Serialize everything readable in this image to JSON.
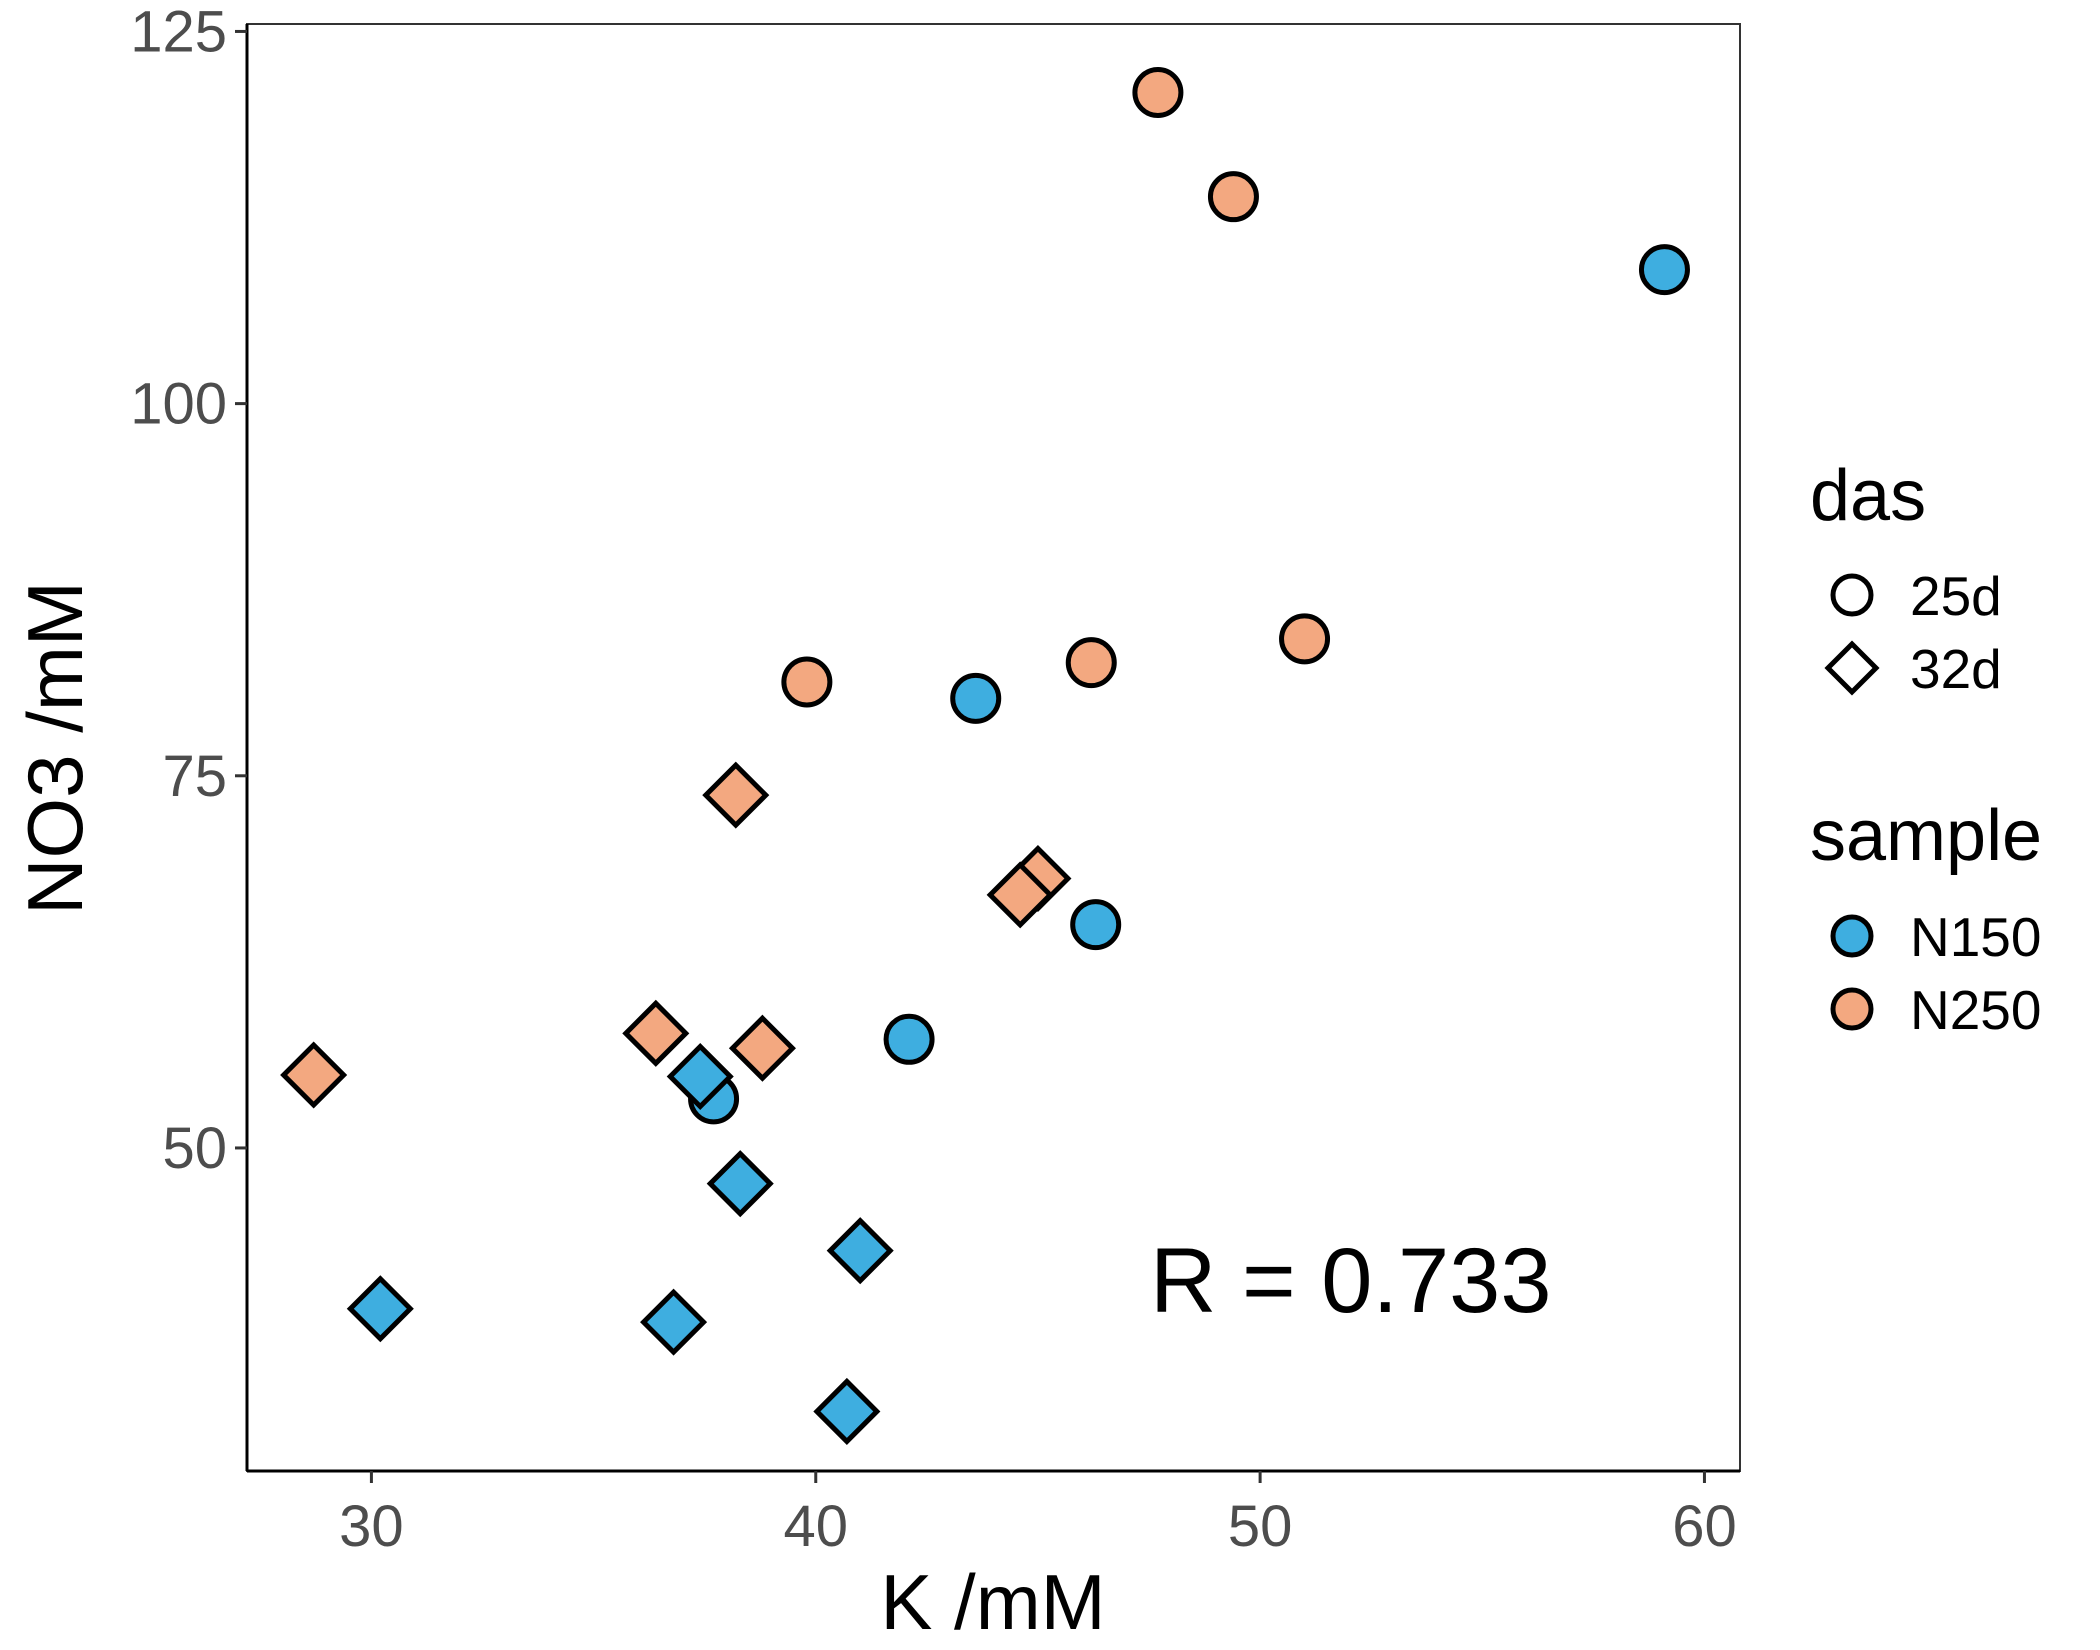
{
  "chart_data": {
    "type": "scatter",
    "xlabel": "K /mM",
    "ylabel": "NO3 /mM",
    "xlim": [
      27.2,
      60.8
    ],
    "ylim": [
      28.3,
      125.5
    ],
    "x_ticks": [
      30,
      40,
      50,
      60
    ],
    "y_ticks": [
      50,
      75,
      100,
      125
    ],
    "grid": false,
    "annotation": "R = 0.733",
    "legend_position": "right",
    "legends": {
      "shape": {
        "title": "das",
        "entries": [
          {
            "label": "25d",
            "shape": "circle"
          },
          {
            "label": "32d",
            "shape": "diamond"
          }
        ]
      },
      "color": {
        "title": "sample",
        "entries": [
          {
            "label": "N150",
            "color": "#3eaee0"
          },
          {
            "label": "N250",
            "color": "#f3a880"
          }
        ]
      }
    },
    "series": [
      {
        "name": "N150",
        "color": "#3eaee0",
        "points": [
          {
            "x": 59.1,
            "y": 109.0,
            "das": "25d"
          },
          {
            "x": 43.6,
            "y": 80.2,
            "das": "25d"
          },
          {
            "x": 46.3,
            "y": 65.0,
            "das": "25d"
          },
          {
            "x": 42.1,
            "y": 57.3,
            "das": "25d"
          },
          {
            "x": 37.7,
            "y": 53.3,
            "das": "25d"
          },
          {
            "x": 37.4,
            "y": 54.8,
            "das": "32d"
          },
          {
            "x": 38.3,
            "y": 47.6,
            "das": "32d"
          },
          {
            "x": 41.0,
            "y": 43.1,
            "das": "32d"
          },
          {
            "x": 30.2,
            "y": 39.2,
            "das": "32d"
          },
          {
            "x": 36.8,
            "y": 38.3,
            "das": "32d"
          },
          {
            "x": 40.7,
            "y": 32.3,
            "das": "32d"
          }
        ]
      },
      {
        "name": "N250",
        "color": "#f3a880",
        "points": [
          {
            "x": 47.7,
            "y": 120.9,
            "das": "25d"
          },
          {
            "x": 49.4,
            "y": 113.9,
            "das": "25d"
          },
          {
            "x": 51.0,
            "y": 84.2,
            "das": "25d"
          },
          {
            "x": 46.2,
            "y": 82.6,
            "das": "25d"
          },
          {
            "x": 39.8,
            "y": 81.3,
            "das": "25d"
          },
          {
            "x": 38.2,
            "y": 73.7,
            "das": "32d"
          },
          {
            "x": 45.0,
            "y": 68.1,
            "das": "32d"
          },
          {
            "x": 44.6,
            "y": 67.0,
            "das": "32d"
          },
          {
            "x": 36.4,
            "y": 57.7,
            "das": "32d"
          },
          {
            "x": 38.8,
            "y": 56.7,
            "das": "32d"
          },
          {
            "x": 28.7,
            "y": 54.9,
            "das": "32d"
          }
        ]
      }
    ]
  }
}
